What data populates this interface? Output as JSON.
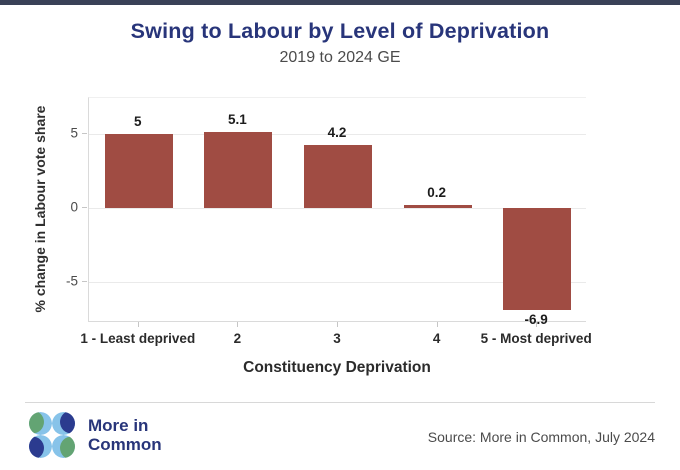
{
  "chart_data": {
    "type": "bar",
    "title": "Swing to Labour by Level of Deprivation",
    "subtitle": "2019 to 2024 GE",
    "categories": [
      "1 - Least deprived",
      "2",
      "3",
      "4",
      "5 - Most deprived"
    ],
    "values": [
      5,
      5.1,
      4.2,
      0.2,
      -6.9
    ],
    "value_labels": [
      "5",
      "5.1",
      "4.2",
      "0.2",
      "-6.9"
    ],
    "xlabel": "Constituency Deprivation",
    "ylabel": "% change in Labour vote share",
    "yticks": [
      5,
      0,
      -5
    ],
    "ytick_labels": [
      "5",
      "0",
      "-5"
    ],
    "ylim": [
      -7.8,
      7.4
    ],
    "grid": true,
    "legend": "none",
    "bar_color": "#a04c43"
  },
  "footer": {
    "logo_text_line1": "More in",
    "logo_text_line2": "Common",
    "source": "Source: More in Common, July 2024"
  },
  "colors": {
    "accent_navy": "#28357a",
    "top_bar": "#3a4157",
    "bar": "#a04c43",
    "logo_green": "#63a473",
    "logo_light_blue": "#87c3e9",
    "logo_dark_blue": "#2b3b8f"
  }
}
